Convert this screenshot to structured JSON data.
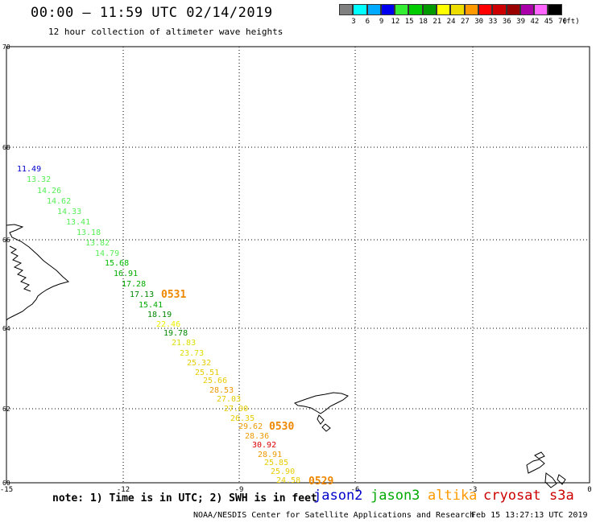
{
  "header": {
    "title": "00:00 – 11:59 UTC 02/14/2019",
    "subtitle": "12 hour collection of altimeter wave heights"
  },
  "legend": {
    "unit": "(ft)",
    "bins": [
      {
        "label": "3",
        "color": "#808080"
      },
      {
        "label": "6",
        "color": "#00ffff"
      },
      {
        "label": "9",
        "color": "#00aaff"
      },
      {
        "label": "12",
        "color": "#0000ee"
      },
      {
        "label": "15",
        "color": "#33ee33"
      },
      {
        "label": "18",
        "color": "#00cc00"
      },
      {
        "label": "21",
        "color": "#009900"
      },
      {
        "label": "24",
        "color": "#ffff00"
      },
      {
        "label": "27",
        "color": "#eedd00"
      },
      {
        "label": "30",
        "color": "#ff9900"
      },
      {
        "label": "33",
        "color": "#ff0000"
      },
      {
        "label": "36",
        "color": "#cc0000"
      },
      {
        "label": "39",
        "color": "#990000"
      },
      {
        "label": "42",
        "color": "#aa00aa"
      },
      {
        "label": "45",
        "color": "#ff66ff"
      },
      {
        "label": "70",
        "color": "#000000"
      }
    ]
  },
  "axes": {
    "lat_labels": [
      "70",
      "68",
      "66",
      "64",
      "62",
      "60"
    ],
    "lon_labels": [
      "-15",
      "-12",
      "-9",
      "-6",
      "-3",
      "0"
    ]
  },
  "track": [
    {
      "text": "11.49",
      "color": "#0000cc"
    },
    {
      "text": "13.32",
      "color": "#55ee55"
    },
    {
      "text": "14.26",
      "color": "#55ee55"
    },
    {
      "text": "14.62",
      "color": "#55ee55"
    },
    {
      "text": "14.33",
      "color": "#55ee55"
    },
    {
      "text": "13.41",
      "color": "#55ee55"
    },
    {
      "text": "13.18",
      "color": "#55ee55"
    },
    {
      "text": "13.82",
      "color": "#55ee55"
    },
    {
      "text": "14.79",
      "color": "#55ee55"
    },
    {
      "text": "15.68",
      "color": "#00bb00"
    },
    {
      "text": "16.91",
      "color": "#00aa00"
    },
    {
      "text": "17.28",
      "color": "#00aa00"
    },
    {
      "text": "17.13",
      "color": "#008800"
    },
    {
      "text": "15.41",
      "color": "#00aa00"
    },
    {
      "text": "18.19",
      "color": "#008800"
    },
    {
      "text": "22.46",
      "color": "#eeee00"
    },
    {
      "text": "19.78",
      "color": "#008800"
    },
    {
      "text": "21.83",
      "color": "#dddd00"
    },
    {
      "text": "23.73",
      "color": "#dddd00"
    },
    {
      "text": "25.32",
      "color": "#e6cc00"
    },
    {
      "text": "25.51",
      "color": "#e6cc00"
    },
    {
      "text": "25.66",
      "color": "#e6cc00"
    },
    {
      "text": "28.53",
      "color": "#ee9900"
    },
    {
      "text": "27.03",
      "color": "#e6cc00"
    },
    {
      "text": "27.00",
      "color": "#e6cc00"
    },
    {
      "text": "26.35",
      "color": "#e6cc00"
    },
    {
      "text": "29.62",
      "color": "#ee9900"
    },
    {
      "text": "28.36",
      "color": "#ee9900"
    },
    {
      "text": "30.92",
      "color": "#dd0000"
    },
    {
      "text": "28.91",
      "color": "#ee9900"
    },
    {
      "text": "25.85",
      "color": "#e6cc00"
    },
    {
      "text": "25.90",
      "color": "#e6cc00"
    },
    {
      "text": "24.58",
      "color": "#e6cc00"
    }
  ],
  "pass_times": [
    {
      "text": "0531",
      "color": "#ee8800"
    },
    {
      "text": "0530",
      "color": "#ee8800"
    },
    {
      "text": "0529",
      "color": "#ee8800"
    }
  ],
  "footer": {
    "note": "note: 1) Time is in UTC; 2) SWH is in feet",
    "satellites": [
      {
        "name": "jason2",
        "color": "#0000cc"
      },
      {
        "name": "jason3",
        "color": "#00aa00"
      },
      {
        "name": "altika",
        "color": "#ff9900"
      },
      {
        "name": "cryosat",
        "color": "#cc0000"
      },
      {
        "name": "s3a",
        "color": "#cc0000"
      }
    ],
    "credit": "NOAA/NESDIS Center for Satellite Applications and Research",
    "timestamp": "Feb 15 13:27:13 UTC 2019"
  }
}
